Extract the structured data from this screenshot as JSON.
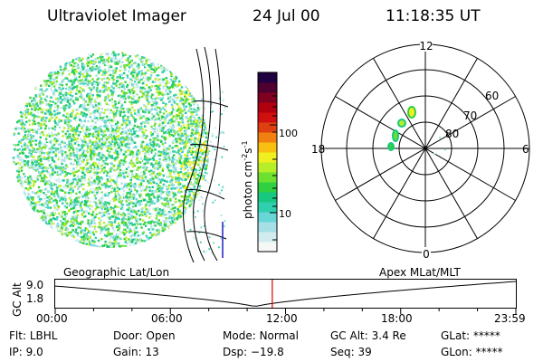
{
  "header": {
    "instrument": "Ultraviolet Imager",
    "date": "24 Jul 00",
    "time": "11:18:35 UT"
  },
  "colorbar": {
    "unit_label": "photon cm",
    "unit_exp1": "-2",
    "unit_mid": "s",
    "unit_exp2": "-1",
    "ticks": [
      "100",
      "10"
    ],
    "colors": [
      "#f6f8f8",
      "#d0ecee",
      "#a6e0e6",
      "#68d6d6",
      "#2fcfb0",
      "#18c880",
      "#30d040",
      "#6ee030",
      "#b6ee28",
      "#f0f020",
      "#f8c010",
      "#f08010",
      "#e04010",
      "#d01010",
      "#b00010",
      "#800020",
      "#500030",
      "#200040"
    ]
  },
  "polar": {
    "mlt_labels": {
      "top": "12",
      "left": "18",
      "right": "6",
      "bottom": "0"
    },
    "lat_labels": [
      "60",
      "70",
      "80"
    ]
  },
  "timeline": {
    "left_title": "Geographic Lat/Lon",
    "right_title": "Apex MLat/MLT",
    "axis_label": "GC Alt",
    "y_max": "9.0",
    "y_min": "1.8",
    "times": [
      "00:00",
      "06:00",
      "12:00",
      "18:00",
      "23:59"
    ],
    "current_time_hours": 11.31
  },
  "info": {
    "row1": [
      {
        "label": "Flt:",
        "value": "LBHL"
      },
      {
        "label": "Door:",
        "value": "Open"
      },
      {
        "label": "Mode:",
        "value": "Normal"
      },
      {
        "label": "GC Alt:",
        "value": "3.4 Re"
      },
      {
        "label": "GLat:",
        "value": "*****"
      }
    ],
    "row2": [
      {
        "label": "IP:",
        "value": "9.0"
      },
      {
        "label": "Gain:",
        "value": "13"
      },
      {
        "label": "Dsp:",
        "value": "−19.8"
      },
      {
        "label": "Seq:",
        "value": "39"
      },
      {
        "label": "GLon:",
        "value": "*****"
      }
    ]
  }
}
